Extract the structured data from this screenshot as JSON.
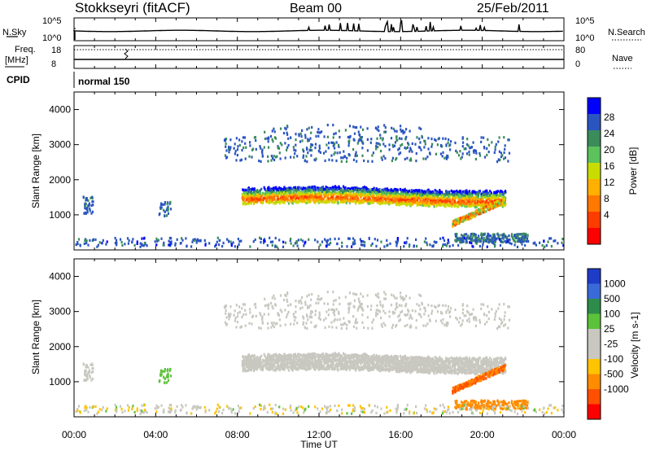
{
  "header": {
    "station": "Stokkseyri (fitACF)",
    "beam": "Beam 00",
    "date": "25/Feb/2011"
  },
  "top_panels": {
    "nsky_label": "N.Sky",
    "nsky_ticks": [
      "10^5",
      "10^0"
    ],
    "nsearch_label": "N.Search",
    "nsearch_ticks": [
      "10^5",
      "10^0"
    ],
    "freq_label_1": "Freq.",
    "freq_label_2": "[MHz]",
    "freq_ticks": [
      "18",
      "8"
    ],
    "nave_label": "Nave",
    "nave_ticks": [
      "80",
      "0"
    ],
    "cpid_label": "CPID",
    "cpid_value": "normal 150"
  },
  "chart_data": [
    {
      "type": "heatmap",
      "name": "power",
      "ylabel": "Slant Range [km]",
      "yticks": [
        "4000",
        "3000",
        "2000",
        "1000"
      ],
      "colorbar_label": "Power [dB]",
      "colorbar_ticks": [
        "28",
        "24",
        "20",
        "16",
        "12",
        "8",
        "4"
      ],
      "colors": [
        "#0000ff",
        "#2a55c0",
        "#3a8c5a",
        "#5cc25c",
        "#c8dc00",
        "#ffb000",
        "#ff7800",
        "#ff3c00",
        "#ff0000"
      ]
    },
    {
      "type": "heatmap",
      "name": "velocity",
      "ylabel": "Slant Range [km]",
      "yticks": [
        "4000",
        "3000",
        "2000",
        "1000"
      ],
      "colorbar_label": "Velocity [m s-1]",
      "colorbar_ticks": [
        "1000",
        "500",
        "100",
        "25",
        "-25",
        "-100",
        "-500",
        "-1000"
      ],
      "colors": [
        "#1e3cc8",
        "#3a6ad8",
        "#2e8c4a",
        "#5cc23a",
        "#c8c8c0",
        "#c8c8c0",
        "#ffc400",
        "#ff8c00",
        "#ff5000",
        "#ff0000"
      ]
    }
  ],
  "xaxis": {
    "label": "Time UT",
    "ticks": [
      "00:00",
      "04:00",
      "08:00",
      "12:00",
      "16:00",
      "20:00",
      "00:00"
    ]
  }
}
